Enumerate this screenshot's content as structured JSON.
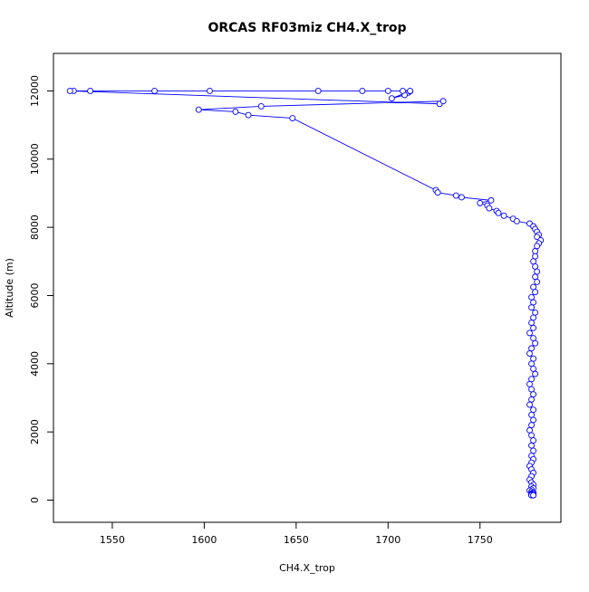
{
  "chart_data": {
    "type": "line",
    "title": "ORCAS RF03miz CH4.X_trop",
    "xlabel": "CH4.X_trop",
    "ylabel": "Altitude (m)",
    "xlim": [
      1518,
      1794
    ],
    "ylim": [
      -650,
      13100
    ],
    "x_ticks": [
      1550,
      1600,
      1650,
      1700,
      1750
    ],
    "y_ticks": [
      0,
      2000,
      4000,
      6000,
      8000,
      10000,
      12000
    ],
    "grid": false,
    "legend": "none",
    "line_color": "#0000ff",
    "marker": "open-circle",
    "series": [
      {
        "x": [
          1711,
          1709,
          1702,
          1712,
          1712,
          1708,
          1700,
          1686,
          1662,
          1603,
          1573,
          1538,
          1529,
          1527,
          1728,
          1730,
          1631,
          1597,
          1617,
          1624,
          1648,
          1726,
          1727,
          1737,
          1740,
          1756,
          1750,
          1754,
          1755,
          1759,
          1760,
          1763,
          1768,
          1770,
          1777,
          1779,
          1780,
          1781,
          1782,
          1781,
          1783,
          1782,
          1781,
          1780,
          1780,
          1779,
          1780,
          1781,
          1780,
          1781,
          1779,
          1780,
          1778,
          1779,
          1778,
          1780,
          1779,
          1778,
          1779,
          1777,
          1779,
          1780,
          1778,
          1777,
          1779,
          1778,
          1779,
          1780,
          1778,
          1777,
          1778,
          1779,
          1778,
          1777,
          1779,
          1778,
          1779,
          1778,
          1777,
          1778,
          1779,
          1778,
          1779,
          1778,
          1779,
          1778,
          1777,
          1778,
          1779,
          1778,
          1777,
          1778,
          1779,
          1778,
          1779,
          1778,
          1777,
          1778,
          1779,
          1778,
          1779,
          1778,
          1778,
          1779,
          1778,
          1778,
          1779,
          1778,
          1778,
          1779
        ],
        "y": [
          11950,
          11880,
          11780,
          11990,
          12000,
          12000,
          12000,
          12000,
          12000,
          12000,
          12000,
          12000,
          12000,
          12000,
          11620,
          11700,
          11550,
          11450,
          11390,
          11290,
          11200,
          9090,
          9020,
          8930,
          8880,
          8790,
          8710,
          8640,
          8560,
          8480,
          8420,
          8340,
          8250,
          8180,
          8110,
          8030,
          7950,
          7870,
          7780,
          7720,
          7620,
          7530,
          7450,
          7300,
          7150,
          7000,
          6850,
          6700,
          6550,
          6400,
          6250,
          6100,
          5950,
          5800,
          5650,
          5500,
          5350,
          5200,
          5050,
          4900,
          4750,
          4600,
          4450,
          4300,
          4150,
          4000,
          3850,
          3700,
          3550,
          3400,
          3250,
          3100,
          2950,
          2800,
          2650,
          2500,
          2350,
          2200,
          2050,
          1900,
          1750,
          1600,
          1450,
          1300,
          1200,
          1100,
          1000,
          900,
          800,
          700,
          600,
          520,
          450,
          400,
          350,
          310,
          280,
          250,
          225,
          205,
          190,
          175,
          165,
          155,
          150,
          148,
          146,
          145,
          144,
          143
        ]
      }
    ]
  }
}
